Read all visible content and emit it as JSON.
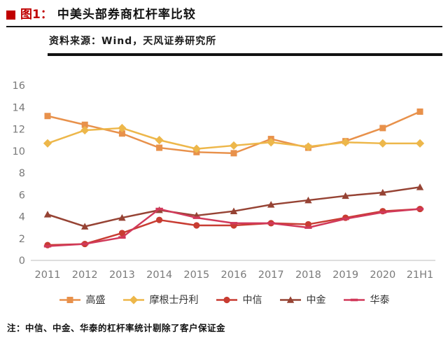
{
  "header": {
    "figure_label": "图1：",
    "title": "中美头部券商杠杆率比较",
    "source": "资料来源：Wind，天风证券研究所"
  },
  "chart_data": {
    "type": "line",
    "categories": [
      "2011",
      "2012",
      "2013",
      "2014",
      "2015",
      "2016",
      "2017",
      "2018",
      "2019",
      "2020",
      "21H1"
    ],
    "series": [
      {
        "id": "goldman",
        "name": "高盛",
        "color": "#E8914B",
        "marker": "square",
        "values": [
          13.2,
          12.4,
          11.6,
          10.3,
          9.9,
          9.8,
          11.1,
          10.3,
          10.9,
          12.1,
          13.6
        ]
      },
      {
        "id": "morgan-stanley",
        "name": "摩根士丹利",
        "color": "#EDB74A",
        "marker": "diamond",
        "values": [
          10.7,
          11.9,
          12.1,
          11.0,
          10.2,
          10.5,
          10.8,
          10.4,
          10.8,
          10.7,
          10.7
        ]
      },
      {
        "id": "citic",
        "name": "中信",
        "color": "#C83C32",
        "marker": "circle",
        "values": [
          1.4,
          1.5,
          2.5,
          3.7,
          3.2,
          3.2,
          3.4,
          3.3,
          3.9,
          4.5,
          4.7
        ]
      },
      {
        "id": "cicc",
        "name": "中金",
        "color": "#964334",
        "marker": "triangle",
        "values": [
          4.2,
          3.1,
          3.9,
          4.6,
          4.1,
          4.5,
          5.1,
          5.5,
          5.9,
          6.2,
          6.7
        ]
      },
      {
        "id": "huatai",
        "name": "华泰",
        "color": "#D1395A",
        "marker": "dash",
        "values": [
          1.3,
          1.5,
          2.1,
          4.7,
          3.9,
          3.4,
          3.4,
          3.0,
          3.8,
          4.4,
          4.7
        ]
      }
    ],
    "ylim": [
      0,
      16
    ],
    "ytick_step": 2,
    "grid": false,
    "legend_position": "bottom"
  },
  "footer": {
    "note": "注：中信、中金、华泰的杠杆率统计剔除了客户保证金"
  }
}
